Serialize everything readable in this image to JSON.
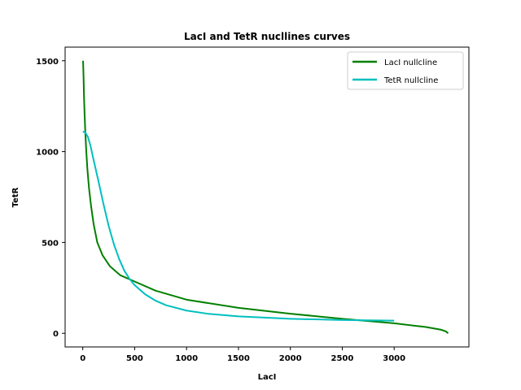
{
  "chart_data": {
    "type": "line",
    "title": "LacI and TetR nucllines curves",
    "xlabel": "LacI",
    "ylabel": "TetR",
    "xlim": [
      -170,
      3720
    ],
    "ylim": [
      -75,
      1575
    ],
    "xticks": [
      0,
      500,
      1000,
      1500,
      2000,
      2500,
      3000
    ],
    "xtick_labels": [
      "0",
      "500",
      "1000",
      "1500",
      "2000",
      "2500",
      "3000"
    ],
    "yticks": [
      0,
      500,
      1000,
      1500
    ],
    "ytick_labels": [
      "0",
      "500",
      "1000",
      "1500"
    ],
    "grid": false,
    "legend_position": "top-right",
    "series": [
      {
        "name": "LacI nullcline",
        "color": "#008000",
        "x": [
          3,
          8,
          12,
          18,
          25,
          34,
          45,
          60,
          80,
          105,
          140,
          190,
          260,
          360,
          500,
          700,
          1000,
          1500,
          2000,
          2500,
          3000,
          3300,
          3450,
          3500,
          3520
        ],
        "y": [
          1500,
          1400,
          1300,
          1200,
          1100,
          1000,
          900,
          800,
          700,
          600,
          500,
          430,
          370,
          320,
          285,
          235,
          185,
          140,
          108,
          80,
          55,
          35,
          20,
          10,
          0
        ]
      },
      {
        "name": "TetR nullcline",
        "color": "#00bfbf",
        "x": [
          0,
          25,
          50,
          75,
          100,
          150,
          200,
          250,
          300,
          350,
          400,
          450,
          500,
          600,
          700,
          800,
          1000,
          1200,
          1500,
          2000,
          2500,
          3000
        ],
        "y": [
          1110,
          1105,
          1080,
          1030,
          965,
          840,
          710,
          590,
          490,
          410,
          345,
          300,
          265,
          215,
          180,
          155,
          125,
          108,
          93,
          80,
          73,
          70
        ]
      }
    ]
  }
}
